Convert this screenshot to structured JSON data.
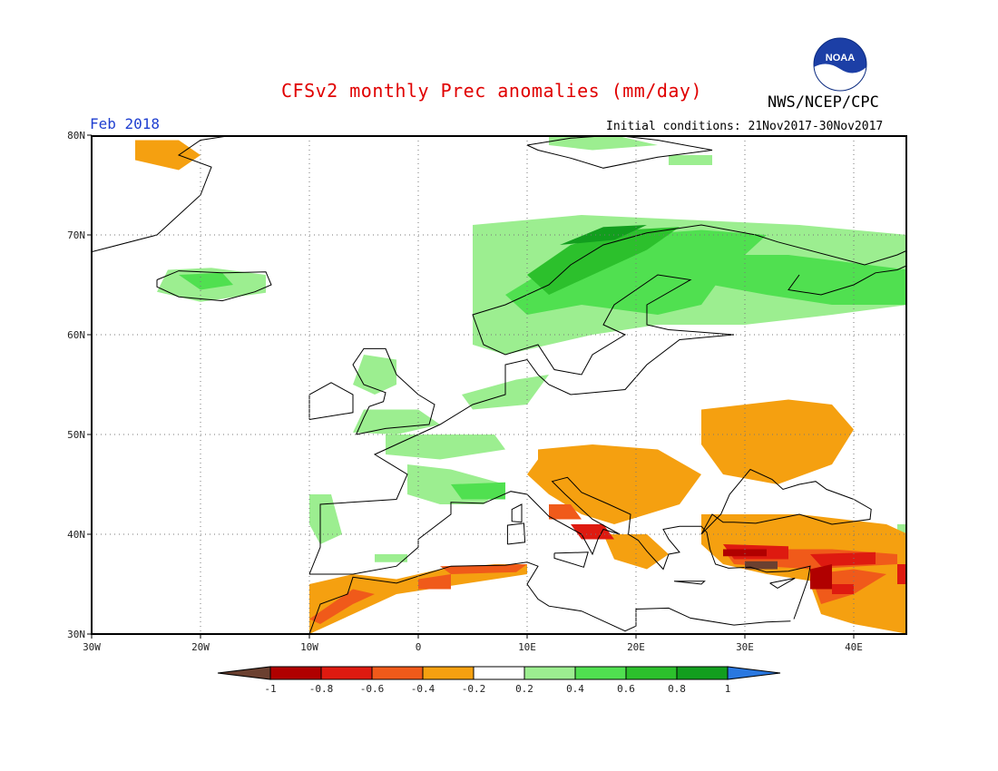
{
  "header": {
    "title": "CFSv2 monthly Prec anomalies (mm/day)",
    "agency": "NWS/NCEP/CPC",
    "logo_text": "NOAA",
    "month": "Feb 2018",
    "initial_conditions": "Initial conditions: 21Nov2017-30Nov2017"
  },
  "map": {
    "lat_labels": [
      "80N",
      "70N",
      "60N",
      "50N",
      "40N",
      "30N"
    ],
    "lon_labels": [
      "30W",
      "20W",
      "10W",
      "0",
      "10E",
      "20E",
      "30E",
      "40E"
    ],
    "grid": "dotted every 10 degrees"
  },
  "colorbar": {
    "tick_labels": [
      "-1",
      "-0.8",
      "-0.6",
      "-0.4",
      "-0.2",
      "0.2",
      "0.4",
      "0.6",
      "0.8",
      "1"
    ],
    "colors": {
      "below_min": "#6b4030",
      "neg_08_1": "#b00000",
      "neg_06_08": "#de1a10",
      "neg_04_06": "#f05a1a",
      "neg_02_04": "#f5a010",
      "neutral": "#ffffff",
      "pos_02_04": "#9cee90",
      "pos_04_06": "#50e050",
      "pos_06_08": "#2cc02c",
      "pos_08_1": "#129e1e",
      "above_max": "#2a78e0"
    }
  }
}
